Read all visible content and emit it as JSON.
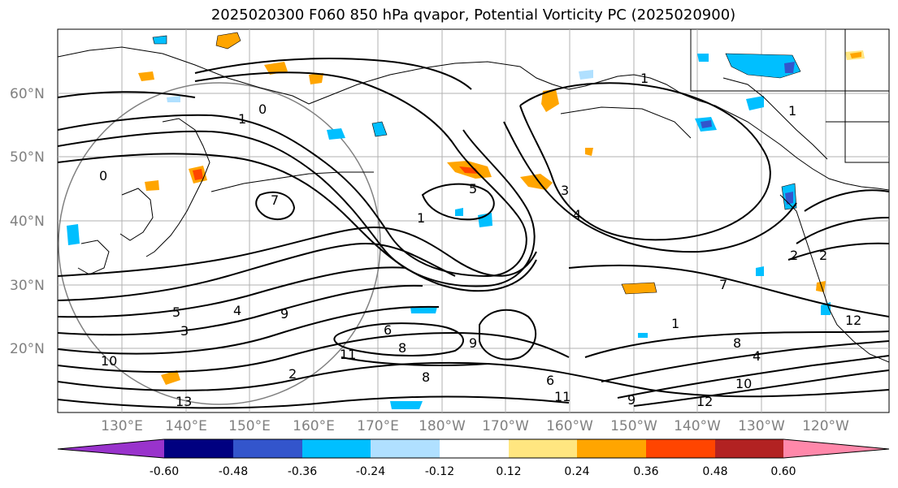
{
  "title": "2025020300 F060 850 hPa qvapor, Potential Vorticity PC (2025020900)",
  "lat_labels": [
    "60°N",
    "50°N",
    "40°N",
    "30°N",
    "20°N"
  ],
  "lon_labels": [
    "130°E",
    "140°E",
    "150°E",
    "160°E",
    "170°E",
    "180°W",
    "170°W",
    "160°W",
    "150°W",
    "140°W",
    "130°W",
    "120°W"
  ],
  "colorbar": {
    "colors": [
      "#9933cc",
      "#000080",
      "#3355cc",
      "#00bfff",
      "#b0e0ff",
      "#ffffff",
      "#ffe680",
      "#ffa500",
      "#ff4500",
      "#b22222",
      "#ff88aa"
    ],
    "tick_labels": [
      "-0.60",
      "-0.48",
      "-0.36",
      "-0.24",
      "-0.12",
      "0.12",
      "0.24",
      "0.36",
      "0.48",
      "0.60"
    ]
  },
  "contour_labels": [
    "0",
    "1",
    "5",
    "1",
    "3",
    "4",
    "1",
    "1",
    "0",
    "7",
    "5",
    "4",
    "3",
    "9",
    "10",
    "11",
    "8",
    "6",
    "13",
    "12",
    "9",
    "7",
    "1",
    "8",
    "2",
    "11",
    "12",
    "10",
    "6",
    "4",
    "8",
    "9",
    "2",
    "2"
  ]
}
